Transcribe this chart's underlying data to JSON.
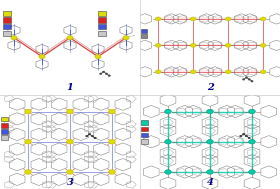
{
  "panel_labels": [
    "1",
    "2",
    "3",
    "4"
  ],
  "panel_label_color": "#00008B",
  "background_color": "#ffffff",
  "panel_bg": "#ffffff",
  "legend_1": [
    "#c8c8c8",
    "#4455dd",
    "#dd2222",
    "#dddd00"
  ],
  "legend_2": [
    "#c8c8c8",
    "#4455dd",
    "#dd2222",
    "#dddd00"
  ],
  "legend_3": [
    "#c8c8c8",
    "#4455dd",
    "#dd2222",
    "#dddd00"
  ],
  "legend_4": [
    "#c8c8c8",
    "#4455dd",
    "#dd2222",
    "#00ccaa"
  ],
  "p1_node": "#dddd00",
  "p1_bond_r": "#cc2222",
  "p1_bond_b": "#3344cc",
  "p1_ring": "#999999",
  "p2_node": "#dddd00",
  "p2_bond": "#dd3333",
  "p2_ring": "#888888",
  "p3_node": "#dddd00",
  "p3_bond_r": "#dd3333",
  "p3_bond_b": "#3344cc",
  "p3_ring": "#888888",
  "p4_node": "#00ccaa",
  "p4_bond": "#00ccaa",
  "p4_ring": "#888888",
  "solvent_c": "#333333",
  "fig_w": 2.8,
  "fig_h": 1.89,
  "dpi": 100
}
